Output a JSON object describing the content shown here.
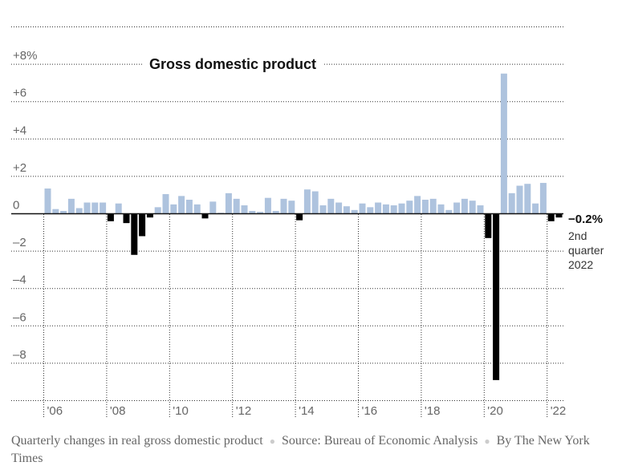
{
  "chart_data": {
    "type": "bar",
    "title": "Gross domestic product",
    "unit": "%",
    "ylim": [
      -10,
      10
    ],
    "y_ticks": [
      {
        "value": 8,
        "label": "+8%"
      },
      {
        "value": 6,
        "label": "+6"
      },
      {
        "value": 4,
        "label": "+4"
      },
      {
        "value": 2,
        "label": "+2"
      },
      {
        "value": 0,
        "label": "0"
      },
      {
        "value": -2,
        "label": "–2"
      },
      {
        "value": -4,
        "label": "–4"
      },
      {
        "value": -6,
        "label": "–6"
      },
      {
        "value": -8,
        "label": "–8"
      }
    ],
    "x_ticks": [
      "'06",
      "'08",
      "'10",
      "'12",
      "'14",
      "'16",
      "'18",
      "'20",
      "'22"
    ],
    "grid": true,
    "colors": {
      "positive": "#aec3de",
      "negative": "#000000",
      "recent": "#000000"
    },
    "quarters": [
      "2006Q1",
      "2006Q2",
      "2006Q3",
      "2006Q4",
      "2007Q1",
      "2007Q2",
      "2007Q3",
      "2007Q4",
      "2008Q1",
      "2008Q2",
      "2008Q3",
      "2008Q4",
      "2009Q1",
      "2009Q2",
      "2009Q3",
      "2009Q4",
      "2010Q1",
      "2010Q2",
      "2010Q3",
      "2010Q4",
      "2011Q1",
      "2011Q2",
      "2011Q3",
      "2011Q4",
      "2012Q1",
      "2012Q2",
      "2012Q3",
      "2012Q4",
      "2013Q1",
      "2013Q2",
      "2013Q3",
      "2013Q4",
      "2014Q1",
      "2014Q2",
      "2014Q3",
      "2014Q4",
      "2015Q1",
      "2015Q2",
      "2015Q3",
      "2015Q4",
      "2016Q1",
      "2016Q2",
      "2016Q3",
      "2016Q4",
      "2017Q1",
      "2017Q2",
      "2017Q3",
      "2017Q4",
      "2018Q1",
      "2018Q2",
      "2018Q3",
      "2018Q4",
      "2019Q1",
      "2019Q2",
      "2019Q3",
      "2019Q4",
      "2020Q1",
      "2020Q2",
      "2020Q3",
      "2020Q4",
      "2021Q1",
      "2021Q2",
      "2021Q3",
      "2021Q4",
      "2022Q1",
      "2022Q2"
    ],
    "values": [
      1.35,
      0.25,
      0.15,
      0.8,
      0.3,
      0.6,
      0.6,
      0.6,
      -0.4,
      0.55,
      -0.5,
      -2.2,
      -1.2,
      -0.2,
      0.35,
      1.05,
      0.5,
      0.95,
      0.75,
      0.5,
      -0.25,
      0.65,
      0.05,
      1.1,
      0.8,
      0.45,
      0.15,
      0.1,
      0.85,
      0.15,
      0.8,
      0.7,
      -0.35,
      1.3,
      1.2,
      0.45,
      0.8,
      0.6,
      0.4,
      0.2,
      0.55,
      0.35,
      0.6,
      0.5,
      0.45,
      0.55,
      0.7,
      0.95,
      0.75,
      0.8,
      0.5,
      0.2,
      0.6,
      0.8,
      0.7,
      0.45,
      -1.3,
      -8.9,
      7.5,
      1.1,
      1.5,
      1.6,
      0.55,
      1.65,
      -0.4,
      -0.2
    ],
    "last_value": {
      "value": "−0.2%",
      "label_lines": [
        "2nd",
        "quarter",
        "2022"
      ]
    }
  },
  "caption": {
    "description": "Quarterly changes in real gross domestic product",
    "source": "Source:  Bureau of Economic Analysis",
    "byline": "By The New York Times",
    "separator": "●"
  }
}
